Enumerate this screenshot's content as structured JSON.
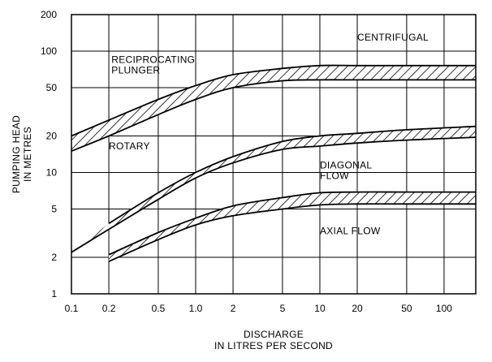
{
  "chart_data": {
    "type": "area",
    "x_scale": "log",
    "y_scale": "log",
    "xlim": [
      0.1,
      180
    ],
    "ylim": [
      1,
      200
    ],
    "grid": true,
    "x_ticks": [
      {
        "value": 0.1,
        "label": "0.1"
      },
      {
        "value": 0.2,
        "label": "0.2"
      },
      {
        "value": 0.5,
        "label": "0.5"
      },
      {
        "value": 1.0,
        "label": "1.0"
      },
      {
        "value": 2,
        "label": "2"
      },
      {
        "value": 5,
        "label": "5"
      },
      {
        "value": 10,
        "label": "10"
      },
      {
        "value": 20,
        "label": "20"
      },
      {
        "value": 50,
        "label": "50"
      },
      {
        "value": 100,
        "label": "100"
      }
    ],
    "y_ticks": [
      {
        "value": 1,
        "label": "1"
      },
      {
        "value": 2,
        "label": "2"
      },
      {
        "value": 5,
        "label": "5"
      },
      {
        "value": 10,
        "label": "10"
      },
      {
        "value": 20,
        "label": "20"
      },
      {
        "value": 50,
        "label": "50"
      },
      {
        "value": 100,
        "label": "100"
      },
      {
        "value": 200,
        "label": "200"
      }
    ],
    "xlabel_lines": [
      "DISCHARGE",
      "IN LITRES PER SECOND"
    ],
    "ylabel_lines": [
      "PUMPING HEAD",
      "IN METRES"
    ],
    "region_labels": [
      {
        "lines": [
          "RECIPROCATING",
          "PLUNGER"
        ],
        "x": 0.21,
        "y": 80
      },
      {
        "lines": [
          "CENTRIFUGAL"
        ],
        "x": 20,
        "y": 122
      },
      {
        "lines": [
          "ROTARY"
        ],
        "x": 0.2,
        "y": 15.5
      },
      {
        "lines": [
          "DIAGONAL",
          "FLOW"
        ],
        "x": 10,
        "y": 10.8
      },
      {
        "lines": [
          "AXIAL FLOW"
        ],
        "x": 10,
        "y": 3.1
      }
    ],
    "series": [
      {
        "name": "",
        "upper": [
          [
            0.1,
            20
          ],
          [
            0.2,
            27
          ],
          [
            0.5,
            40
          ],
          [
            1.0,
            52
          ],
          [
            2,
            64
          ],
          [
            5,
            72
          ],
          [
            10,
            76
          ],
          [
            20,
            76
          ],
          [
            50,
            76
          ],
          [
            180,
            76
          ]
        ],
        "lower": [
          [
            0.1,
            15
          ],
          [
            0.2,
            20
          ],
          [
            0.5,
            30
          ],
          [
            1.0,
            40
          ],
          [
            2,
            50
          ],
          [
            5,
            57
          ],
          [
            10,
            58
          ],
          [
            20,
            58
          ],
          [
            50,
            58
          ],
          [
            180,
            58
          ]
        ]
      },
      {
        "name": "",
        "upper": [
          [
            0.2,
            3.8
          ],
          [
            0.5,
            6.8
          ],
          [
            1.0,
            10
          ],
          [
            2,
            13.5
          ],
          [
            5,
            18
          ],
          [
            10,
            20
          ],
          [
            20,
            21
          ],
          [
            50,
            22.5
          ],
          [
            180,
            24
          ]
        ],
        "lower": [
          [
            0.1,
            2.2
          ],
          [
            0.2,
            3.4
          ],
          [
            0.5,
            6.0
          ],
          [
            1.0,
            9.0
          ],
          [
            2,
            12
          ],
          [
            5,
            15.5
          ],
          [
            10,
            16.5
          ],
          [
            20,
            17.5
          ],
          [
            50,
            18.5
          ],
          [
            180,
            19.5
          ]
        ]
      },
      {
        "name": "",
        "upper": [
          [
            0.2,
            2.1
          ],
          [
            0.5,
            3.2
          ],
          [
            1.0,
            4.2
          ],
          [
            2,
            5.3
          ],
          [
            5,
            6.2
          ],
          [
            10,
            6.8
          ],
          [
            20,
            6.9
          ],
          [
            50,
            6.9
          ],
          [
            180,
            6.9
          ]
        ],
        "lower": [
          [
            0.2,
            1.85
          ],
          [
            0.5,
            2.8
          ],
          [
            1.0,
            3.7
          ],
          [
            2,
            4.4
          ],
          [
            5,
            5.0
          ],
          [
            10,
            5.4
          ],
          [
            20,
            5.5
          ],
          [
            50,
            5.5
          ],
          [
            180,
            5.5
          ]
        ]
      }
    ]
  }
}
